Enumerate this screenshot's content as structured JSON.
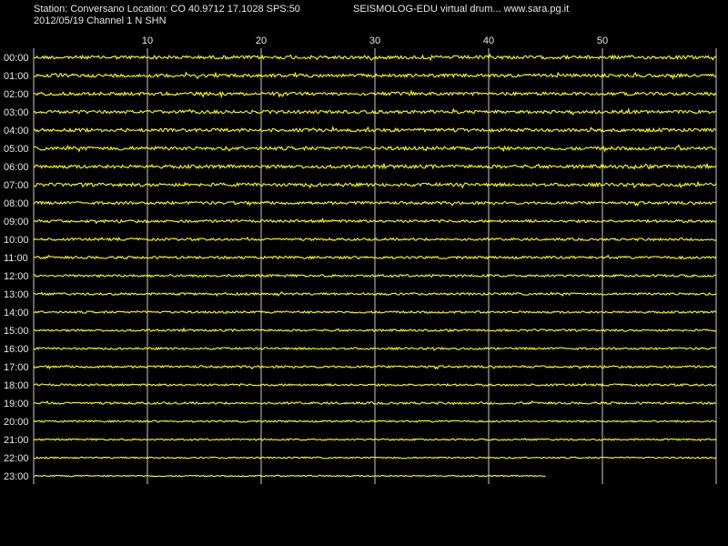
{
  "header": {
    "station_line": "Station: Conversano Location: CO 40.9712 17.1028 SPS:50",
    "date_channel_line": "2012/05/19  Channel 1 N SHN",
    "app_line": "SEISMOLOG-EDU virtual drum... www.sara.pg.it"
  },
  "colors": {
    "background": "#000000",
    "trace": "#ffff00",
    "grid": "#c8c8c8",
    "text": "#e8e8e8"
  },
  "chart_data": {
    "type": "line",
    "title": "SEISMOLOG-EDU virtual drum",
    "xlabel": "",
    "ylabel": "",
    "x_range_minutes": [
      0,
      60
    ],
    "x_ticks": [
      10,
      20,
      30,
      40,
      50
    ],
    "x_tick_labels": [
      "10",
      "20",
      "30",
      "40",
      "50"
    ],
    "grid": true,
    "rows": [
      {
        "label": "00:00",
        "minutes_recorded": 60,
        "noise_level": 0.9
      },
      {
        "label": "01:00",
        "minutes_recorded": 60,
        "noise_level": 0.85
      },
      {
        "label": "02:00",
        "minutes_recorded": 60,
        "noise_level": 0.85
      },
      {
        "label": "03:00",
        "minutes_recorded": 60,
        "noise_level": 0.8
      },
      {
        "label": "04:00",
        "minutes_recorded": 60,
        "noise_level": 0.85
      },
      {
        "label": "05:00",
        "minutes_recorded": 60,
        "noise_level": 0.9
      },
      {
        "label": "06:00",
        "minutes_recorded": 60,
        "noise_level": 0.9
      },
      {
        "label": "07:00",
        "minutes_recorded": 60,
        "noise_level": 0.85
      },
      {
        "label": "08:00",
        "minutes_recorded": 60,
        "noise_level": 0.7
      },
      {
        "label": "09:00",
        "minutes_recorded": 60,
        "noise_level": 0.65
      },
      {
        "label": "10:00",
        "minutes_recorded": 60,
        "noise_level": 0.55
      },
      {
        "label": "11:00",
        "minutes_recorded": 60,
        "noise_level": 0.6
      },
      {
        "label": "12:00",
        "minutes_recorded": 60,
        "noise_level": 0.55
      },
      {
        "label": "13:00",
        "minutes_recorded": 60,
        "noise_level": 0.5
      },
      {
        "label": "14:00",
        "minutes_recorded": 60,
        "noise_level": 0.45
      },
      {
        "label": "15:00",
        "minutes_recorded": 60,
        "noise_level": 0.45
      },
      {
        "label": "16:00",
        "minutes_recorded": 60,
        "noise_level": 0.45
      },
      {
        "label": "17:00",
        "minutes_recorded": 60,
        "noise_level": 0.5
      },
      {
        "label": "18:00",
        "minutes_recorded": 60,
        "noise_level": 0.45
      },
      {
        "label": "19:00",
        "minutes_recorded": 60,
        "noise_level": 0.5
      },
      {
        "label": "20:00",
        "minutes_recorded": 60,
        "noise_level": 0.35
      },
      {
        "label": "21:00",
        "minutes_recorded": 60,
        "noise_level": 0.3
      },
      {
        "label": "22:00",
        "minutes_recorded": 60,
        "noise_level": 0.25
      },
      {
        "label": "23:00",
        "minutes_recorded": 45,
        "noise_level": 0.2
      }
    ]
  }
}
